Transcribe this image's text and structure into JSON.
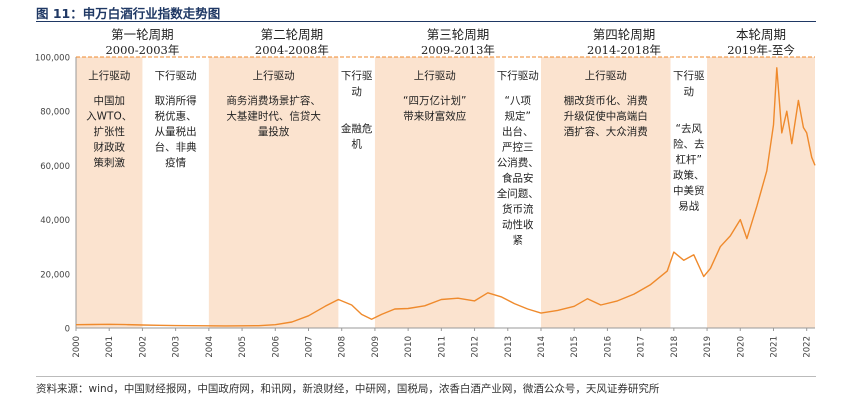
{
  "figure": {
    "title": "图 11：申万白酒行业指数走势图",
    "source": "资料来源：wind，中国财经报网，中国政府网，和讯网，新浪财经，中研网，国税局，浓香白酒产业网，微酒公众号，天风证券研究所"
  },
  "chart_data": {
    "type": "line",
    "title": "",
    "xlabel": "",
    "ylabel": "",
    "ylim": [
      0,
      100000
    ],
    "yticks": [
      0,
      20000,
      40000,
      60000,
      80000,
      100000
    ],
    "ytick_labels": [
      "0",
      "20,000",
      "40,000",
      "60,000",
      "80,000",
      "100,000"
    ],
    "xlim": [
      2000.0,
      2022.25
    ],
    "xtick_labels": [
      "2000",
      "2001",
      "2002",
      "2003",
      "2004",
      "2005",
      "2006",
      "2007",
      "2008",
      "2009",
      "2010",
      "2011",
      "2012",
      "2013",
      "2014",
      "2015",
      "2016",
      "2017",
      "2018",
      "2019",
      "2020",
      "2021",
      "2022"
    ],
    "grid": false,
    "line_color": "#ef8a2c",
    "band_color": "#fbe3cf",
    "series": [
      {
        "values": [
          [
            2000.0,
            1200
          ],
          [
            2000.5,
            1300
          ],
          [
            2001.0,
            1350
          ],
          [
            2001.5,
            1250
          ],
          [
            2002.0,
            1100
          ],
          [
            2002.5,
            1000
          ],
          [
            2003.0,
            900
          ],
          [
            2003.5,
            850
          ],
          [
            2004.0,
            800
          ],
          [
            2004.5,
            780
          ],
          [
            2005.0,
            800
          ],
          [
            2005.5,
            850
          ],
          [
            2006.0,
            1200
          ],
          [
            2006.5,
            2200
          ],
          [
            2007.0,
            4500
          ],
          [
            2007.5,
            8000
          ],
          [
            2007.9,
            10500
          ],
          [
            2008.3,
            8500
          ],
          [
            2008.6,
            5000
          ],
          [
            2008.9,
            3200
          ],
          [
            2009.2,
            5000
          ],
          [
            2009.6,
            7000
          ],
          [
            2010.0,
            7200
          ],
          [
            2010.5,
            8200
          ],
          [
            2011.0,
            10500
          ],
          [
            2011.5,
            11000
          ],
          [
            2012.0,
            10000
          ],
          [
            2012.4,
            13000
          ],
          [
            2012.8,
            11500
          ],
          [
            2013.2,
            9000
          ],
          [
            2013.6,
            7000
          ],
          [
            2014.0,
            5500
          ],
          [
            2014.5,
            6500
          ],
          [
            2015.0,
            8000
          ],
          [
            2015.4,
            10800
          ],
          [
            2015.8,
            8500
          ],
          [
            2016.3,
            10000
          ],
          [
            2016.8,
            12500
          ],
          [
            2017.3,
            16000
          ],
          [
            2017.8,
            21000
          ],
          [
            2018.0,
            28000
          ],
          [
            2018.3,
            25000
          ],
          [
            2018.6,
            27000
          ],
          [
            2018.9,
            19000
          ],
          [
            2019.1,
            22000
          ],
          [
            2019.4,
            30000
          ],
          [
            2019.7,
            34000
          ],
          [
            2020.0,
            40000
          ],
          [
            2020.2,
            33000
          ],
          [
            2020.5,
            45000
          ],
          [
            2020.8,
            58000
          ],
          [
            2021.0,
            75000
          ],
          [
            2021.1,
            96000
          ],
          [
            2021.25,
            72000
          ],
          [
            2021.4,
            80000
          ],
          [
            2021.55,
            68000
          ],
          [
            2021.75,
            84000
          ],
          [
            2021.9,
            74000
          ],
          [
            2022.0,
            72000
          ],
          [
            2022.15,
            63000
          ],
          [
            2022.25,
            60000
          ]
        ]
      }
    ],
    "cycles": [
      {
        "name": "第一轮周期",
        "range": "2000-2003年",
        "start": 2000.0,
        "end": 2004.0,
        "phases": [
          {
            "label": "上行驱动",
            "kind": "up",
            "start": 2000.0,
            "end": 2002.0,
            "desc": [
              "中国加",
              "入WTO、",
              "扩张性",
              "财政政",
              "策刺激"
            ]
          },
          {
            "label": "下行驱动",
            "kind": "down",
            "start": 2002.0,
            "end": 2004.0,
            "desc": [
              "取消所得",
              "税优惠、",
              "从量税出",
              "台、非典",
              "疫情"
            ]
          }
        ]
      },
      {
        "name": "第二轮周期",
        "range": "2004-2008年",
        "start": 2004.0,
        "end": 2009.0,
        "phases": [
          {
            "label": "上行驱动",
            "kind": "up",
            "start": 2004.0,
            "end": 2007.9,
            "desc": [
              "商务消费场景扩容、",
              "大基建时代、信贷大",
              "量投放"
            ]
          },
          {
            "label": "下行驱",
            "label2": "动",
            "kind": "down",
            "start": 2007.9,
            "end": 2009.0,
            "desc": [
              "金融危",
              "机"
            ]
          }
        ]
      },
      {
        "name": "第三轮周期",
        "range": "2009-2013年",
        "start": 2009.0,
        "end": 2014.0,
        "phases": [
          {
            "label": "上行驱动",
            "kind": "up",
            "start": 2009.0,
            "end": 2012.6,
            "desc": [
              "“四万亿计划”",
              "带来财富效应"
            ]
          },
          {
            "label": "下行驱动",
            "kind": "down",
            "start": 2012.6,
            "end": 2014.0,
            "desc": [
              "“八项",
              "规定”",
              "出台、",
              "严控三",
              "公消费、",
              "食品安",
              "全问题、",
              "货币流",
              "动性收",
              "紧"
            ]
          }
        ]
      },
      {
        "name": "第四轮周期",
        "range": "2014-2018年",
        "start": 2014.0,
        "end": 2019.0,
        "phases": [
          {
            "label": "上行驱动",
            "kind": "up",
            "start": 2014.0,
            "end": 2017.9,
            "desc": [
              "棚改货币化、消费",
              "升级促使中高端白",
              "酒扩容、大众消费"
            ]
          },
          {
            "label": "下行驱",
            "label2": "动",
            "kind": "down",
            "start": 2017.9,
            "end": 2019.0,
            "desc": [
              "“去风",
              "险、去",
              "杠杆”",
              "政策、",
              "中美贸",
              "易战"
            ]
          }
        ]
      },
      {
        "name": "本轮周期",
        "range": "2019年-至今",
        "start": 2019.0,
        "end": 2022.25,
        "phases": [
          {
            "label": "",
            "kind": "up",
            "start": 2019.0,
            "end": 2022.25,
            "desc": []
          }
        ]
      }
    ]
  }
}
